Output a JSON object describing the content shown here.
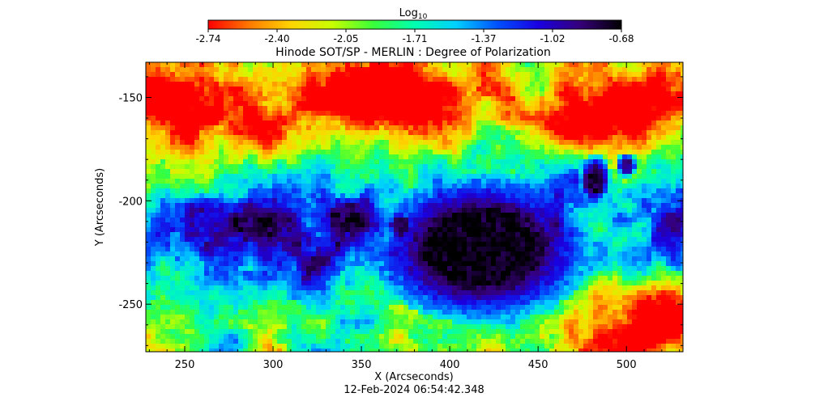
{
  "chart_data": {
    "type": "heatmap",
    "title": "Hinode SOT/SP - MERLIN : Degree of Polarization",
    "xlabel": "X (Arcseconds)",
    "ylabel": "Y (Arcseconds)",
    "timestamp": "12-Feb-2024 06:54:42.348",
    "colorbar": {
      "label_base": "Log",
      "label_subscript": "10",
      "range": [
        -2.74,
        -0.68
      ],
      "tick_labels": [
        "-2.74",
        "-2.40",
        "-2.05",
        "-1.71",
        "-1.37",
        "-1.02",
        "-0.68"
      ],
      "colormap": [
        "#ff0000",
        "#ff7a00",
        "#ffd400",
        "#c8ff00",
        "#39ff3a",
        "#00ffb0",
        "#00d0ff",
        "#0050ff",
        "#1a00e0",
        "#36007a",
        "#000000"
      ]
    },
    "xlim": [
      228,
      532
    ],
    "ylim": [
      -273,
      -183
    ],
    "xticks": [
      250,
      300,
      350,
      400,
      450,
      500
    ],
    "xtick_labels": [
      "250",
      "300",
      "350",
      "400",
      "450",
      "500"
    ],
    "yticks": [
      -150,
      -200,
      -250
    ],
    "ytick_labels": [
      "-150",
      "-200",
      "-250"
    ],
    "features": [
      {
        "kind": "sunspot",
        "x": 418,
        "y": -223,
        "rx": 40,
        "ry": 23,
        "value": -0.7
      },
      {
        "kind": "pore",
        "x": 337,
        "y": -208,
        "rx": 6,
        "ry": 6,
        "value": -0.8
      },
      {
        "kind": "pore",
        "x": 372,
        "y": -212,
        "rx": 5,
        "ry": 5,
        "value": -0.8
      },
      {
        "kind": "pore",
        "x": 482,
        "y": -190,
        "rx": 6,
        "ry": 8,
        "value": -0.8
      },
      {
        "kind": "pore",
        "x": 500,
        "y": -183,
        "rx": 4,
        "ry": 4,
        "value": -0.9
      }
    ]
  }
}
